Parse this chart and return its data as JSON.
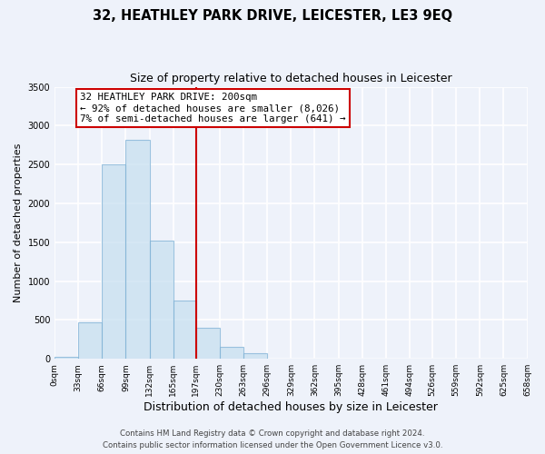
{
  "title": "32, HEATHLEY PARK DRIVE, LEICESTER, LE3 9EQ",
  "subtitle": "Size of property relative to detached houses in Leicester",
  "xlabel": "Distribution of detached houses by size in Leicester",
  "ylabel": "Number of detached properties",
  "bar_edges": [
    0,
    33,
    66,
    99,
    132,
    165,
    197,
    230,
    263,
    296,
    329,
    362,
    395,
    428,
    461,
    494,
    526,
    559,
    592,
    625,
    658
  ],
  "bar_heights": [
    30,
    470,
    2500,
    2820,
    1520,
    750,
    400,
    155,
    75,
    0,
    0,
    0,
    0,
    0,
    0,
    0,
    0,
    0,
    0,
    0
  ],
  "bar_color": "#c5dff0",
  "bar_edgecolor": "#7bafd4",
  "bar_alpha": 0.7,
  "vline_x": 197,
  "vline_color": "#cc0000",
  "ylim": [
    0,
    3500
  ],
  "yticks": [
    0,
    500,
    1000,
    1500,
    2000,
    2500,
    3000,
    3500
  ],
  "tick_labels": [
    "0sqm",
    "33sqm",
    "66sqm",
    "99sqm",
    "132sqm",
    "165sqm",
    "197sqm",
    "230sqm",
    "263sqm",
    "296sqm",
    "329sqm",
    "362sqm",
    "395sqm",
    "428sqm",
    "461sqm",
    "494sqm",
    "526sqm",
    "559sqm",
    "592sqm",
    "625sqm",
    "658sqm"
  ],
  "annotation_title": "32 HEATHLEY PARK DRIVE: 200sqm",
  "annotation_line1": "← 92% of detached houses are smaller (8,026)",
  "annotation_line2": "7% of semi-detached houses are larger (641) →",
  "annotation_box_color": "#cc0000",
  "footer_line1": "Contains HM Land Registry data © Crown copyright and database right 2024.",
  "footer_line2": "Contains public sector information licensed under the Open Government Licence v3.0.",
  "background_color": "#eef2fa",
  "grid_color": "#ffffff",
  "title_fontsize": 10.5,
  "subtitle_fontsize": 9,
  "ylabel_fontsize": 8,
  "xlabel_fontsize": 9,
  "tick_fontsize": 6.5,
  "annotation_fontsize": 7.8,
  "footer_fontsize": 6.2
}
